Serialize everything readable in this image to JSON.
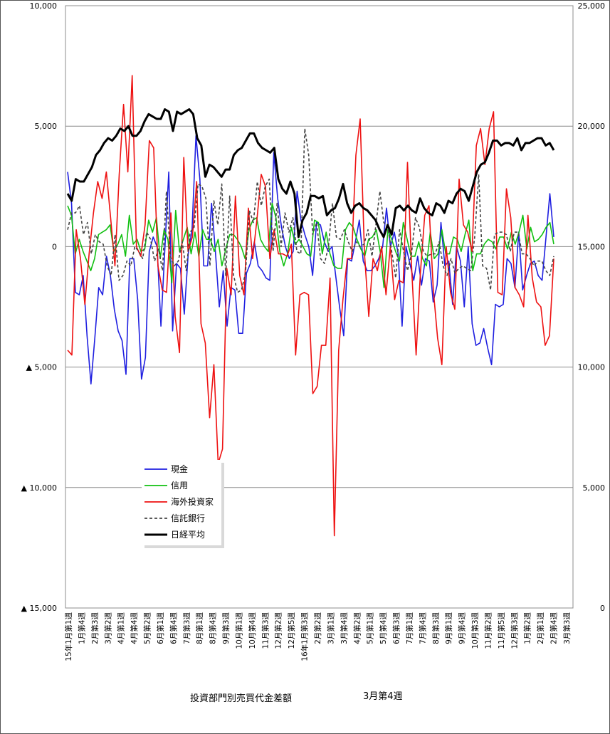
{
  "chart_data": {
    "type": "line",
    "title": "投資部門別売買代金差額",
    "subtitle": "3月第4週",
    "left_axis": {
      "range": [
        -15000,
        10000
      ],
      "ticks": [
        {
          "value": 10000,
          "label": "10,000"
        },
        {
          "value": 5000,
          "label": "5,000"
        },
        {
          "value": 0,
          "label": "0"
        },
        {
          "value": -5000,
          "label": "▲ 5,000"
        },
        {
          "value": -10000,
          "label": "▲ 10,000"
        },
        {
          "value": -15000,
          "label": "▲ 15,000"
        }
      ]
    },
    "right_axis": {
      "range": [
        0,
        25000
      ],
      "ticks": [
        {
          "value": 25000,
          "label": "25,000"
        },
        {
          "value": 20000,
          "label": "20,000"
        },
        {
          "value": 15000,
          "label": "15,000"
        },
        {
          "value": 10000,
          "label": "10,000"
        },
        {
          "value": 5000,
          "label": "5,000"
        },
        {
          "value": 0,
          "label": "0"
        }
      ]
    },
    "grid": true,
    "legend_position": "lower-left",
    "x_tick_labels": [
      "15年1月第1週",
      "1月第4週",
      "2月第3週",
      "3月第2週",
      "4月第1週",
      "4月第4週",
      "5月第2週",
      "6月第1週",
      "6月第4週",
      "7月第3週",
      "8月第1週",
      "8月第4週",
      "9月第3週",
      "10月第1週",
      "10月第4週",
      "11月第3週",
      "12月第2週",
      "12月第5週",
      "16年1月第3週",
      "2月第2週",
      "3月第1週",
      "3月第4週",
      "4月第2週",
      "5月第1週",
      "5月第4週",
      "6月第3週",
      "7月第1週",
      "7月第4週",
      "8月第3週",
      "9月第1週",
      "9月第4週",
      "10月第3週",
      "11月第2週",
      "11月第5週",
      "12月第3週",
      "1月第2週",
      "2月第1週",
      "2月第4週",
      "3月第3週"
    ],
    "series": [
      {
        "name": "現金",
        "axis": "left",
        "color": "#1f1fe0",
        "dash": "solid",
        "values": [
          3100,
          1800,
          -1900,
          -2000,
          -1200,
          -3700,
          -5700,
          -3800,
          -1700,
          -2000,
          -400,
          -1200,
          -2600,
          -3500,
          -3900,
          -5300,
          -500,
          -500,
          -2200,
          -5500,
          -4600,
          -200,
          400,
          0,
          -3300,
          -100,
          3100,
          -3500,
          -700,
          -900,
          -2800,
          -300,
          700,
          4600,
          2800,
          -800,
          -800,
          1800,
          -200,
          -2500,
          -1000,
          -3300,
          -1700,
          -1800,
          -3600,
          -3600,
          -1100,
          -700,
          200,
          -800,
          -1000,
          -1300,
          -1400,
          3900,
          2000,
          800,
          0,
          -500,
          -200,
          2300,
          1100,
          500,
          0,
          -1200,
          1000,
          900,
          200,
          -200,
          0,
          -1300,
          -2600,
          -3700,
          -500,
          -600,
          200,
          1100,
          -600,
          -1000,
          -1000,
          -800,
          -500,
          0,
          1600,
          0,
          600,
          -300,
          -3300,
          0,
          -700,
          -1400,
          -400,
          -1600,
          -500,
          -600,
          -2300,
          -1600,
          1000,
          -800,
          -600,
          -2400,
          0,
          -600,
          -2500,
          0,
          -3200,
          -4100,
          -4000,
          -3400,
          -4200,
          -4900,
          -2400,
          -2500,
          -2400,
          -500,
          -700,
          -1700,
          600,
          -1800,
          -1200,
          -700,
          -600,
          -1200,
          -1400,
          400,
          2200,
          400
        ],
        "show_in_legend": true
      },
      {
        "name": "信用",
        "axis": "left",
        "color": "#11c011",
        "dash": "solid",
        "values": [
          1700,
          1300,
          -300,
          300,
          -200,
          -600,
          -1000,
          -500,
          500,
          600,
          700,
          900,
          -200,
          100,
          500,
          -400,
          1300,
          100,
          300,
          -200,
          -100,
          1100,
          600,
          1200,
          -500,
          700,
          300,
          -1500,
          1500,
          -200,
          300,
          800,
          -300,
          600,
          -400,
          700,
          300,
          300,
          -200,
          300,
          -800,
          -100,
          500,
          500,
          300,
          0,
          -500,
          700,
          1100,
          1200,
          300,
          0,
          -200,
          1800,
          1200,
          -200,
          -800,
          -300,
          800,
          100,
          300,
          0,
          -300,
          -400,
          1100,
          1000,
          -300,
          600,
          -300,
          -800,
          -900,
          -900,
          700,
          1000,
          800,
          300,
          -100,
          -400,
          300,
          400,
          700,
          -200,
          -1700,
          700,
          300,
          -200,
          -600,
          1000,
          300,
          -400,
          -400,
          200,
          -500,
          -800,
          600,
          -500,
          -300,
          700,
          -300,
          -300,
          400,
          300,
          -200,
          500,
          1100,
          -1000,
          -300,
          -300,
          100,
          300,
          200,
          -100,
          400,
          400,
          -100,
          600,
          100,
          600,
          1300,
          -100,
          800,
          200,
          300,
          500,
          800,
          1000,
          100
        ],
        "show_in_legend": true
      },
      {
        "name": "海外投資家",
        "axis": "left",
        "color": "#ee1111",
        "dash": "solid",
        "values": [
          -4300,
          -4500,
          700,
          -500,
          -2400,
          -300,
          1400,
          2700,
          2000,
          3100,
          1200,
          -800,
          3000,
          5900,
          3100,
          7100,
          0,
          -400,
          900,
          4400,
          4100,
          -800,
          -1800,
          -1900,
          1400,
          -2900,
          -4400,
          3700,
          -200,
          400,
          2700,
          -3200,
          -4000,
          -7100,
          -4900,
          -9000,
          -8400,
          -900,
          -2000,
          2100,
          -1200,
          -2000,
          1600,
          -500,
          1100,
          3000,
          2500,
          -500,
          700,
          -300,
          -300,
          -400,
          100,
          -4500,
          -2000,
          -1900,
          -2000,
          -6100,
          -5800,
          -4100,
          -4100,
          -1300,
          -12000,
          -4300,
          -2200,
          -500,
          -500,
          3800,
          5300,
          -300,
          -2900,
          -500,
          -1000,
          0,
          -2000,
          0,
          -2200,
          -1400,
          -1500,
          3500,
          -1000,
          -4500,
          -1100,
          1300,
          1700,
          -1800,
          -3800,
          -4900,
          0,
          -1900,
          -2600,
          2800,
          900,
          600,
          -200,
          4200,
          4900,
          3400,
          4900,
          5600,
          -1900,
          -2000,
          2400,
          1200,
          -1700,
          -2000,
          -2500,
          1300,
          -1300,
          -2300,
          -2500,
          -4100,
          -3700,
          -500
        ],
        "show_in_legend": true
      },
      {
        "name": "信託銀行",
        "axis": "left",
        "color": "#444444",
        "dash": "dashed",
        "values": [
          700,
          1400,
          1400,
          1700,
          500,
          1000,
          -300,
          500,
          200,
          100,
          -800,
          -1200,
          500,
          -1400,
          -1200,
          -600,
          -800,
          0,
          -200,
          -500,
          600,
          300,
          -600,
          -100,
          -1000,
          2300,
          -400,
          -800,
          -600,
          200,
          -1000,
          600,
          800,
          2600,
          2500,
          2000,
          -800,
          1900,
          900,
          2600,
          -1200,
          2100,
          -1200,
          -1900,
          -1800,
          -1100,
          1500,
          1000,
          2700,
          1700,
          2500,
          2800,
          -200,
          1800,
          0,
          1400,
          600,
          1200,
          -200,
          -300,
          4900,
          3800,
          500,
          1000,
          -500,
          -700,
          0,
          1800,
          400,
          300,
          700,
          200,
          -200,
          200,
          0,
          100,
          700,
          -400,
          900,
          2300,
          1000,
          800,
          -200,
          -1300,
          700,
          -200,
          -1000,
          -300,
          1200,
          800,
          -200,
          -400,
          -300,
          -300,
          200,
          -800,
          -1200,
          -500,
          -1100,
          -900,
          -800,
          -900,
          -1000,
          400,
          3000,
          -800,
          -900,
          -1800,
          500,
          600,
          600,
          500,
          -200,
          600,
          600,
          -300,
          -300,
          -500,
          -800,
          -600,
          -600,
          -1000,
          -1200,
          -400
        ],
        "show_in_legend": true
      },
      {
        "name": "日経平均",
        "axis": "right",
        "color": "#000000",
        "dash": "solid",
        "values": [
          17200,
          16900,
          17800,
          17700,
          17700,
          18000,
          18300,
          18800,
          19000,
          19300,
          19500,
          19400,
          19600,
          19900,
          19800,
          20000,
          19600,
          19600,
          19800,
          20200,
          20500,
          20400,
          20300,
          20300,
          20700,
          20600,
          19800,
          20600,
          20500,
          20600,
          20700,
          20500,
          19500,
          19200,
          17900,
          18400,
          18300,
          18100,
          17900,
          18200,
          18200,
          18800,
          19000,
          19100,
          19400,
          19700,
          19700,
          19300,
          19100,
          19000,
          18900,
          19100,
          17800,
          17400,
          17200,
          17700,
          17200,
          15400,
          16100,
          16400,
          17100,
          17100,
          17000,
          17100,
          16300,
          16500,
          16600,
          17000,
          17600,
          16800,
          16400,
          16700,
          16800,
          16600,
          16500,
          16300,
          16100,
          15700,
          15400,
          15900,
          15500,
          16600,
          16700,
          16500,
          16700,
          16500,
          16400,
          17000,
          16600,
          16400,
          16300,
          16800,
          16700,
          16400,
          16900,
          16800,
          17200,
          17400,
          17300,
          16900,
          17500,
          18100,
          18400,
          18500,
          18900,
          19400,
          19400,
          19200,
          19300,
          19300,
          19200,
          19500,
          19000,
          19300,
          19300,
          19400,
          19500,
          19500,
          19200,
          19300,
          19000
        ]
      }
    ]
  },
  "legend": {
    "items": [
      {
        "label": "現金",
        "color": "#1f1fe0",
        "dash": "solid"
      },
      {
        "label": "信用",
        "color": "#11c011",
        "dash": "solid"
      },
      {
        "label": "海外投資家",
        "color": "#ee1111",
        "dash": "solid"
      },
      {
        "label": "信託銀行",
        "color": "#444444",
        "dash": "dashed"
      },
      {
        "label": "日経平均",
        "color": "#000000",
        "dash": "solid"
      }
    ]
  }
}
